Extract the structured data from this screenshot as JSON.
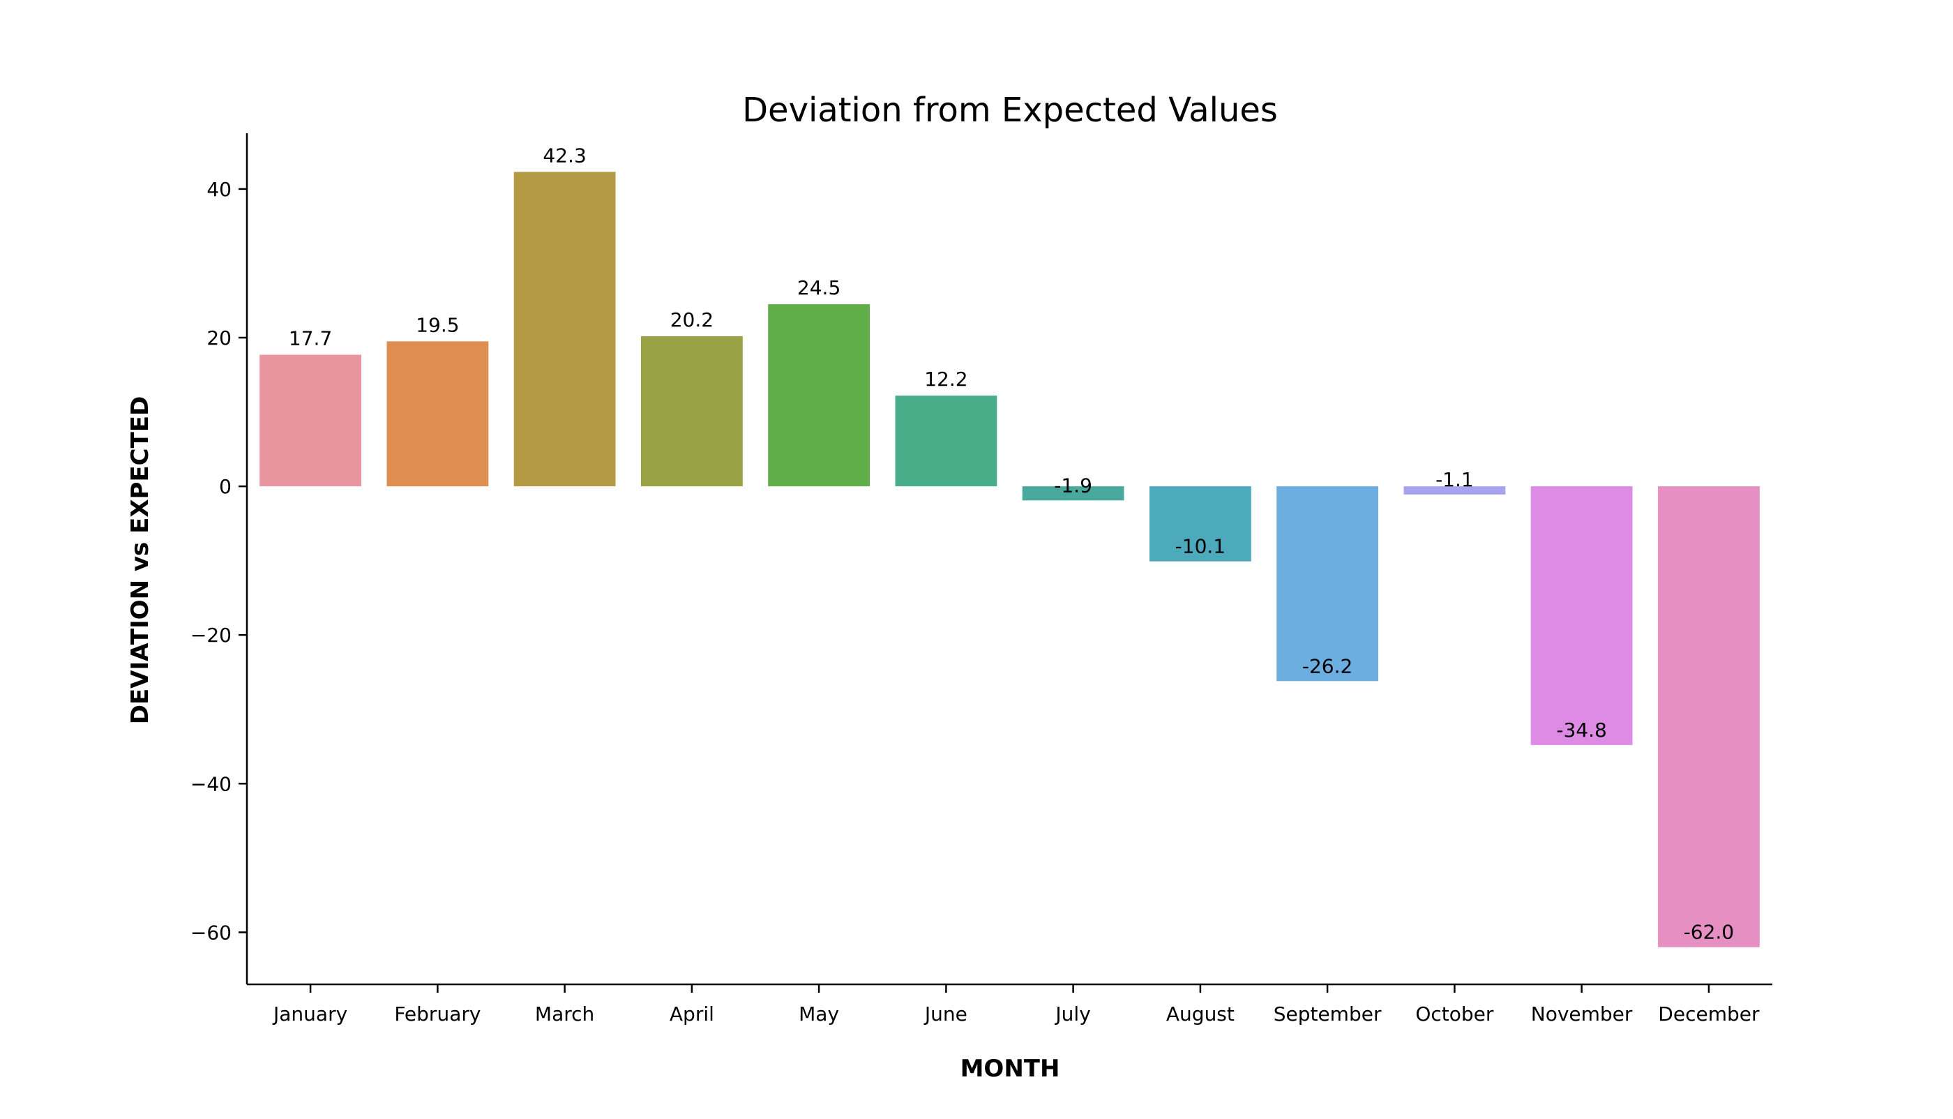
{
  "chart_data": {
    "type": "bar",
    "title": "Deviation from Expected Values",
    "xlabel": "MONTH",
    "ylabel": "DEVIATION vs EXPECTED",
    "categories": [
      "January",
      "February",
      "March",
      "April",
      "May",
      "June",
      "July",
      "August",
      "September",
      "October",
      "November",
      "December"
    ],
    "values": [
      17.7,
      19.5,
      42.3,
      20.2,
      24.5,
      12.2,
      -1.9,
      -10.1,
      -26.2,
      -1.1,
      -34.8,
      -62.0
    ],
    "value_labels": [
      "17.7",
      "19.5",
      "42.3",
      "20.2",
      "24.5",
      "12.2",
      "-1.9",
      "-10.1",
      "-26.2",
      "-1.1",
      "-34.8",
      "-62.0"
    ],
    "colors": [
      "#e8959f",
      "#df8e52",
      "#b59a45",
      "#99a345",
      "#60ae47",
      "#4aad8a",
      "#48a99c",
      "#4da9bc",
      "#6caee0",
      "#a9a2ee",
      "#de8be6",
      "#e68fc3"
    ],
    "yticks": [
      -60,
      -40,
      -20,
      0,
      20,
      40
    ],
    "ytick_labels": [
      "−60",
      "−40",
      "−20",
      "0",
      "20",
      "40"
    ],
    "ylim": [
      -67,
      47.5
    ],
    "grid": false,
    "legend": "none"
  }
}
